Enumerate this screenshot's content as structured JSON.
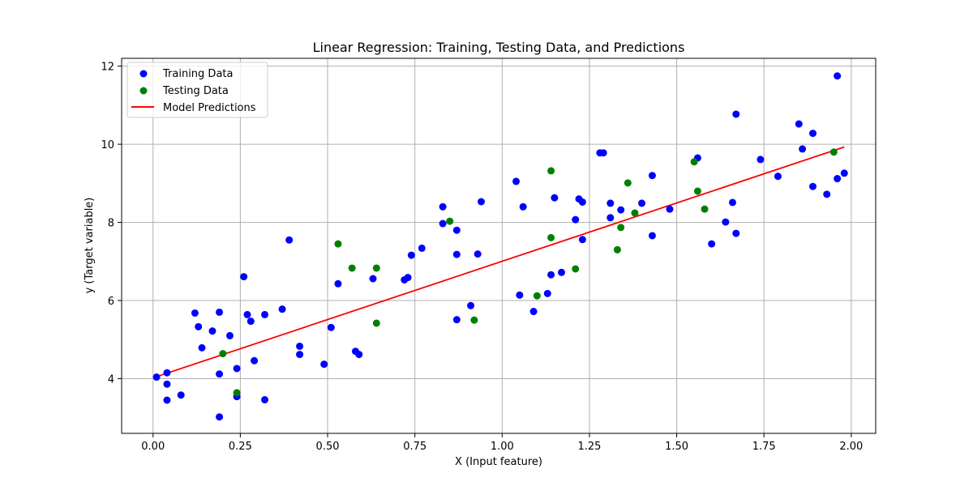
{
  "chart_data": {
    "type": "scatter",
    "title": "Linear Regression: Training, Testing Data, and Predictions",
    "xlabel": "X (Input feature)",
    "ylabel": "y (Target variable)",
    "xlim": [
      -0.09,
      2.07
    ],
    "ylim": [
      2.6,
      12.2
    ],
    "x_ticks": [
      0.0,
      0.25,
      0.5,
      0.75,
      1.0,
      1.25,
      1.5,
      1.75,
      2.0
    ],
    "x_tick_labels": [
      "0.00",
      "0.25",
      "0.50",
      "0.75",
      "1.00",
      "1.25",
      "1.50",
      "1.75",
      "2.00"
    ],
    "y_ticks": [
      4,
      6,
      8,
      10,
      12
    ],
    "y_tick_labels": [
      "4",
      "6",
      "8",
      "10",
      "12"
    ],
    "grid": true,
    "legend_position": "top-left",
    "series": [
      {
        "name": "Training Data",
        "kind": "scatter",
        "color": "#0000ff",
        "points": [
          [
            0.01,
            4.04
          ],
          [
            0.04,
            4.15
          ],
          [
            0.04,
            3.86
          ],
          [
            0.04,
            3.45
          ],
          [
            0.08,
            3.58
          ],
          [
            0.12,
            5.68
          ],
          [
            0.13,
            5.33
          ],
          [
            0.14,
            4.79
          ],
          [
            0.17,
            5.22
          ],
          [
            0.19,
            4.12
          ],
          [
            0.19,
            3.02
          ],
          [
            0.19,
            5.7
          ],
          [
            0.22,
            5.1
          ],
          [
            0.24,
            4.26
          ],
          [
            0.24,
            3.54
          ],
          [
            0.26,
            6.61
          ],
          [
            0.27,
            5.64
          ],
          [
            0.28,
            5.47
          ],
          [
            0.29,
            4.46
          ],
          [
            0.32,
            5.64
          ],
          [
            0.32,
            3.46
          ],
          [
            0.37,
            5.78
          ],
          [
            0.39,
            7.55
          ],
          [
            0.42,
            4.62
          ],
          [
            0.42,
            4.83
          ],
          [
            0.49,
            4.37
          ],
          [
            0.51,
            5.31
          ],
          [
            0.53,
            6.43
          ],
          [
            0.58,
            4.7
          ],
          [
            0.59,
            4.62
          ],
          [
            0.63,
            6.56
          ],
          [
            0.72,
            6.53
          ],
          [
            0.73,
            6.59
          ],
          [
            0.74,
            7.16
          ],
          [
            0.77,
            7.34
          ],
          [
            0.83,
            8.4
          ],
          [
            0.83,
            7.97
          ],
          [
            0.87,
            7.8
          ],
          [
            0.87,
            7.18
          ],
          [
            0.87,
            5.51
          ],
          [
            0.91,
            5.87
          ],
          [
            0.93,
            7.19
          ],
          [
            0.94,
            8.53
          ],
          [
            1.04,
            9.05
          ],
          [
            1.05,
            6.14
          ],
          [
            1.06,
            8.4
          ],
          [
            1.09,
            5.72
          ],
          [
            1.13,
            6.18
          ],
          [
            1.14,
            6.66
          ],
          [
            1.15,
            8.63
          ],
          [
            1.17,
            6.72
          ],
          [
            1.21,
            8.07
          ],
          [
            1.22,
            8.6
          ],
          [
            1.23,
            8.52
          ],
          [
            1.23,
            7.56
          ],
          [
            1.28,
            9.78
          ],
          [
            1.29,
            9.78
          ],
          [
            1.31,
            8.49
          ],
          [
            1.31,
            8.12
          ],
          [
            1.34,
            8.32
          ],
          [
            1.4,
            8.49
          ],
          [
            1.43,
            9.2
          ],
          [
            1.43,
            7.66
          ],
          [
            1.48,
            8.34
          ],
          [
            1.56,
            9.65
          ],
          [
            1.6,
            7.45
          ],
          [
            1.64,
            8.01
          ],
          [
            1.66,
            8.51
          ],
          [
            1.67,
            10.77
          ],
          [
            1.67,
            7.72
          ],
          [
            1.74,
            9.61
          ],
          [
            1.79,
            9.18
          ],
          [
            1.85,
            10.52
          ],
          [
            1.86,
            9.88
          ],
          [
            1.89,
            10.28
          ],
          [
            1.89,
            8.92
          ],
          [
            1.93,
            8.72
          ],
          [
            1.96,
            11.75
          ],
          [
            1.96,
            9.12
          ],
          [
            1.98,
            9.26
          ]
        ]
      },
      {
        "name": "Testing Data",
        "kind": "scatter",
        "color": "#008000",
        "points": [
          [
            0.2,
            4.64
          ],
          [
            0.24,
            3.64
          ],
          [
            0.53,
            7.45
          ],
          [
            0.57,
            6.83
          ],
          [
            0.64,
            6.83
          ],
          [
            0.64,
            5.42
          ],
          [
            0.85,
            8.03
          ],
          [
            0.92,
            5.5
          ],
          [
            1.1,
            6.12
          ],
          [
            1.14,
            9.32
          ],
          [
            1.14,
            7.61
          ],
          [
            1.21,
            6.81
          ],
          [
            1.33,
            7.3
          ],
          [
            1.34,
            7.87
          ],
          [
            1.36,
            9.01
          ],
          [
            1.38,
            8.24
          ],
          [
            1.55,
            9.55
          ],
          [
            1.56,
            8.8
          ],
          [
            1.58,
            8.34
          ],
          [
            1.95,
            9.8
          ]
        ]
      },
      {
        "name": "Model Predictions",
        "kind": "line",
        "color": "#ff0000",
        "points": [
          [
            0.01,
            4.05
          ],
          [
            1.98,
            9.93
          ]
        ]
      }
    ]
  }
}
